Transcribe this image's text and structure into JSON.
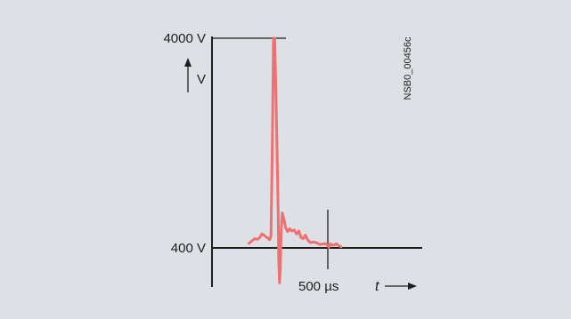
{
  "chart_data": {
    "type": "line",
    "title": "",
    "code": "NSB0_00456c",
    "y_axis": {
      "unit_label": "V",
      "ticks": [
        {
          "value": 4000,
          "label": "4000 V"
        },
        {
          "value": 400,
          "label": "400 V"
        }
      ]
    },
    "x_axis": {
      "unit_label": "t",
      "marker": {
        "value": 500,
        "label": "500 µs"
      }
    },
    "xlim": [
      -210,
      750
    ],
    "ylim": [
      -1300,
      4000
    ],
    "grid": false,
    "series": [
      {
        "color": "#f07070",
        "points": [
          [
            -202,
            480
          ],
          [
            -180,
            515
          ],
          [
            -150,
            560
          ],
          [
            -128,
            545
          ],
          [
            -105,
            580
          ],
          [
            -88,
            640
          ],
          [
            -70,
            620
          ],
          [
            -52,
            590
          ],
          [
            -35,
            570
          ],
          [
            -18,
            540
          ],
          [
            -6,
            600
          ],
          [
            0,
            1400
          ],
          [
            8,
            2500
          ],
          [
            16,
            4000
          ],
          [
            27,
            4000
          ],
          [
            38,
            3000
          ],
          [
            48,
            2100
          ],
          [
            58,
            1000
          ],
          [
            63,
            200
          ],
          [
            70,
            -200
          ],
          [
            76,
            0
          ],
          [
            84,
            650
          ],
          [
            94,
            1000
          ],
          [
            108,
            900
          ],
          [
            124,
            750
          ],
          [
            142,
            680
          ],
          [
            158,
            730
          ],
          [
            178,
            690
          ],
          [
            200,
            710
          ],
          [
            222,
            640
          ],
          [
            242,
            690
          ],
          [
            262,
            575
          ],
          [
            282,
            560
          ],
          [
            300,
            620
          ],
          [
            320,
            540
          ],
          [
            345,
            490
          ],
          [
            368,
            500
          ],
          [
            398,
            490
          ],
          [
            428,
            460
          ],
          [
            468,
            470
          ],
          [
            488,
            470
          ],
          [
            508,
            410
          ],
          [
            522,
            470
          ],
          [
            536,
            450
          ],
          [
            556,
            450
          ],
          [
            575,
            470
          ],
          [
            605,
            430
          ],
          [
            618,
            420
          ]
        ]
      }
    ]
  }
}
